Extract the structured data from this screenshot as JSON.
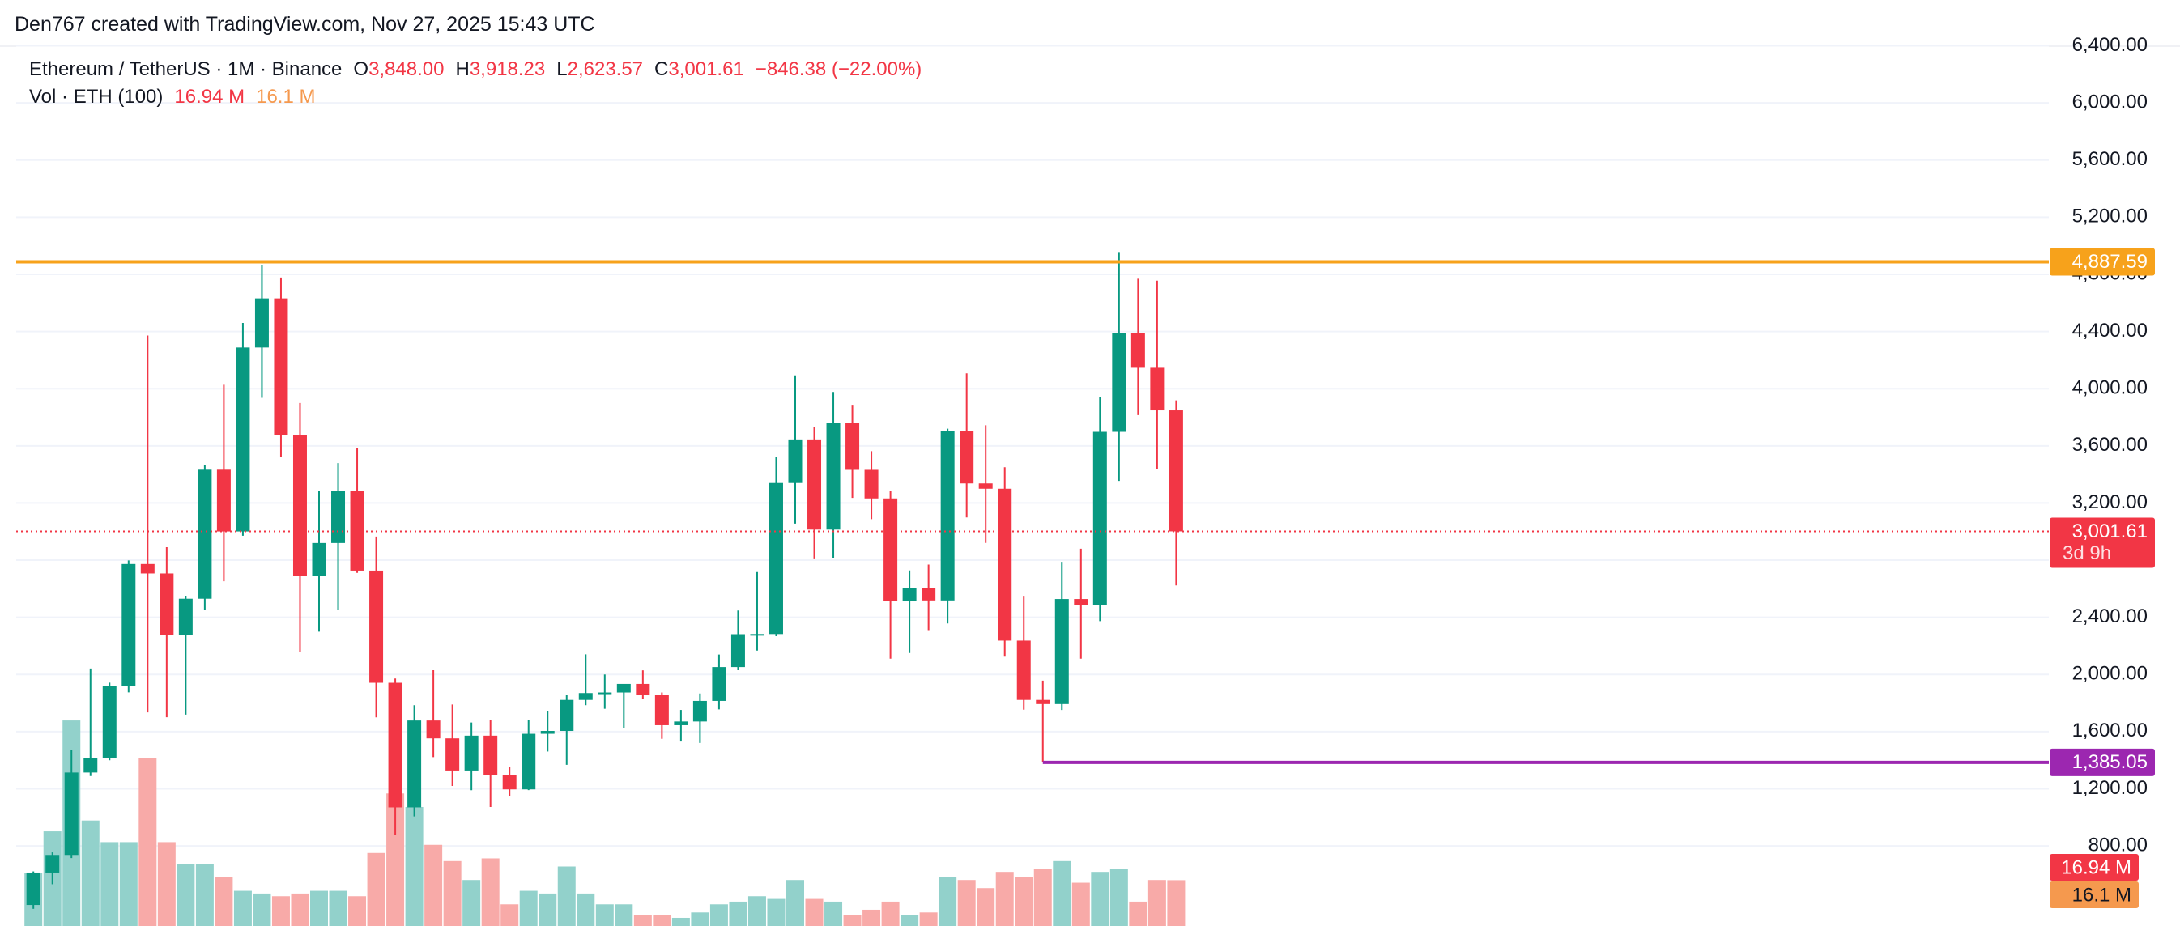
{
  "watermark": "Den767 created with TradingView.com, Nov 27, 2025 15:43 UTC",
  "chart_data": {
    "type": "candlestick",
    "title": "Ethereum / TetherUS · 1M · Binance",
    "ohlc_legend": [
      {
        "key": "O",
        "label": "3,848.00"
      },
      {
        "key": "H",
        "label": "3,918.23"
      },
      {
        "key": "L",
        "label": "2,623.57"
      },
      {
        "key": "C",
        "label": "3,001.61"
      }
    ],
    "change_label": "−846.38 (−22.00%)",
    "up_color": "#089981",
    "down_color": "#f23645",
    "open": [
      387,
      614,
      737,
      1314,
      1417,
      1919,
      2773,
      2707,
      2276,
      2530,
      3433,
      3001,
      4288,
      4632,
      3677,
      2688,
      2920,
      3282,
      2727,
      1942,
      1070,
      1678,
      1553,
      1328,
      1572,
      1295,
      1196,
      1585,
      1605,
      1822,
      1870,
      1874,
      1934,
      1856,
      1645,
      1671,
      1815,
      2052,
      2282,
      2283,
      3340,
      3645,
      3014,
      3763,
      3432,
      3232,
      2513,
      2603,
      2518,
      3703,
      3337,
      3300,
      2237,
      1822,
      1793,
      2528,
      2486,
      3698,
      4391,
      4146,
      3848
    ],
    "high": [
      622,
      755,
      1475,
      2042,
      1943,
      2798,
      4372,
      2891,
      2551,
      3467,
      4027,
      4460,
      4868,
      4778,
      3900,
      3282,
      3479,
      3582,
      2965,
      1972,
      1785,
      2030,
      1790,
      1664,
      1680,
      1352,
      1679,
      1743,
      1857,
      2141,
      2000,
      1930,
      2029,
      1874,
      1752,
      1867,
      2140,
      2448,
      2717,
      3522,
      4093,
      3730,
      3977,
      3887,
      3563,
      3283,
      2728,
      2769,
      3720,
      4107,
      3744,
      3450,
      2550,
      1957,
      2788,
      2880,
      3941,
      4956,
      4769,
      4756,
      3918.23
    ],
    "low": [
      360,
      532,
      715,
      1289,
      1400,
      1875,
      1735,
      1701,
      1719,
      2450,
      2652,
      2971,
      3936,
      3524,
      2159,
      2300,
      2450,
      2711,
      1700,
      880,
      1007,
      1422,
      1220,
      1190,
      1073,
      1151,
      1191,
      1461,
      1368,
      1785,
      1760,
      1626,
      1826,
      1550,
      1531,
      1521,
      1756,
      2030,
      2167,
      2268,
      3056,
      2812,
      2817,
      3236,
      3087,
      2111,
      2150,
      2310,
      2357,
      3099,
      2921,
      2125,
      1754,
      1385.05,
      1752,
      2111,
      2373,
      3355,
      3815,
      3436,
      2623.57
    ],
    "close": [
      614,
      737,
      1314,
      1417,
      1919,
      2773,
      2707,
      2276,
      2530,
      3433,
      3001,
      4288,
      4632,
      3677,
      2688,
      2920,
      3282,
      2727,
      1942,
      1070,
      1678,
      1553,
      1328,
      1572,
      1295,
      1196,
      1585,
      1605,
      1822,
      1870,
      1874,
      1934,
      1856,
      1645,
      1671,
      1815,
      2052,
      2282,
      2283,
      3340,
      3645,
      3014,
      3763,
      3432,
      3232,
      2513,
      2603,
      2518,
      3703,
      3337,
      3300,
      2237,
      1822,
      1793,
      2528,
      2486,
      3698,
      4391,
      4146,
      3848,
      3001.61
    ],
    "ylim": [
      240,
      6720
    ],
    "yticks": [
      {
        "value": 800,
        "label": "800.00"
      },
      {
        "value": 1200,
        "label": "1,200.00"
      },
      {
        "value": 1600,
        "label": "1,600.00"
      },
      {
        "value": 2000,
        "label": "2,000.00"
      },
      {
        "value": 2400,
        "label": "2,400.00"
      },
      {
        "value": 2800,
        "label": "2,800.00"
      },
      {
        "value": 3200,
        "label": "3,200.00"
      },
      {
        "value": 3600,
        "label": "3,600.00"
      },
      {
        "value": 4000,
        "label": "4,000.00"
      },
      {
        "value": 4400,
        "label": "4,400.00"
      },
      {
        "value": 4800,
        "label": "4,800.00"
      },
      {
        "value": 5200,
        "label": "5,200.00"
      },
      {
        "value": 5600,
        "label": "5,600.00"
      },
      {
        "value": 6000,
        "label": "6,000.00"
      },
      {
        "value": 6400,
        "label": "6,400.00"
      }
    ],
    "grid": true,
    "price_lines": [
      {
        "value": 4887.59,
        "label": "4,887.59",
        "color": "#f7a21b"
      },
      {
        "value": 1385.05,
        "label": "1,385.05",
        "color": "#9c27b0"
      }
    ],
    "last_price": {
      "label": "3,001.61",
      "countdown": "3d 9h",
      "color": "#f23645"
    },
    "volume": {
      "name": "Vol · ETH (100)",
      "values": [
        19.5,
        35,
        76,
        39,
        31,
        31,
        62,
        31,
        23,
        23,
        18,
        13,
        12,
        11,
        12,
        13,
        13,
        11,
        27,
        49,
        44,
        30,
        24,
        17,
        25,
        8,
        13,
        12,
        22,
        12,
        8,
        8,
        4,
        4,
        3,
        5,
        8,
        9,
        11,
        10,
        17,
        10,
        9,
        4,
        6,
        9,
        4,
        5,
        18,
        17,
        14,
        20,
        18,
        21,
        24,
        16,
        20,
        21,
        9,
        17,
        16.94
      ],
      "last_label": "16.94 M",
      "ma_value": 16.1,
      "ma_label": "16.1 M",
      "ma_color": "#f5994e",
      "ylim": [
        0,
        85
      ],
      "up_color": "#92d1cb",
      "down_color": "#f8aaa8"
    }
  }
}
